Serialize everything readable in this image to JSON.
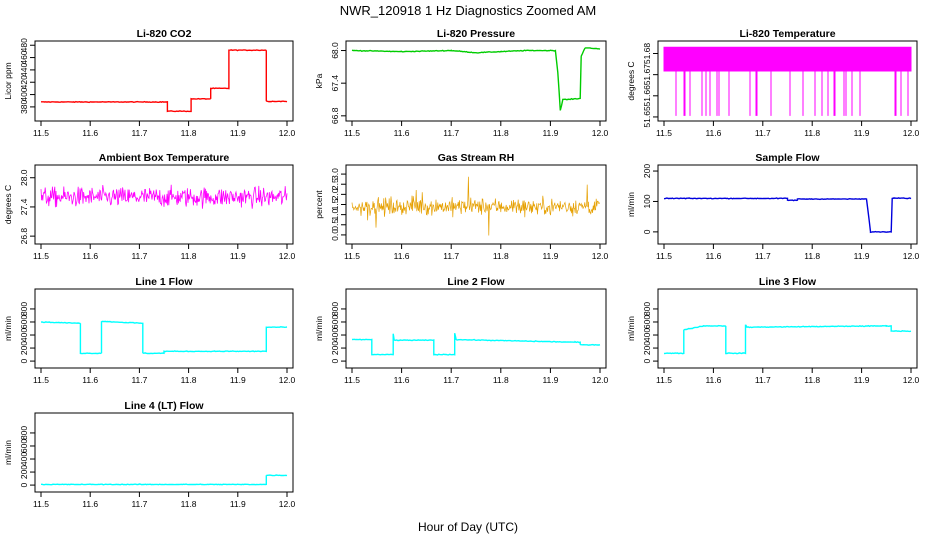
{
  "figure": {
    "title": "NWR_120918  1 Hz Diagnostics Zoomed AM",
    "xlabel": "Hour of Day (UTC)"
  },
  "chart_data": [
    {
      "type": "line",
      "title": "Li-820 CO2",
      "ylabel": "Licor ppm",
      "color": "#ff0000",
      "xlim": [
        11.5,
        12.0
      ],
      "ylim": [
        362,
        482
      ],
      "xticks": [
        "11.5",
        "11.6",
        "11.7",
        "11.8",
        "11.9",
        "12.0"
      ],
      "yticks": [
        "380",
        "400",
        "420",
        "440",
        "460",
        "480"
      ],
      "series": [
        {
          "x": [
            11.5,
            11.757,
            11.757,
            11.805,
            11.805,
            11.845,
            11.845,
            11.882,
            11.882,
            11.958,
            11.958,
            12.0
          ],
          "y": [
            388,
            388,
            373,
            373,
            393,
            393,
            410,
            410,
            472,
            472,
            389,
            389
          ]
        }
      ]
    },
    {
      "type": "line",
      "title": "Li-820 Pressure",
      "ylabel": "kPa",
      "color": "#00cc00",
      "xlim": [
        11.5,
        12.0
      ],
      "ylim": [
        66.76,
        68.12
      ],
      "xticks": [
        "11.5",
        "11.6",
        "11.7",
        "11.8",
        "11.9",
        "12.0"
      ],
      "yticks": [
        "66.8",
        "67.4",
        "68.0"
      ],
      "series": [
        {
          "x": [
            11.5,
            11.6,
            11.7,
            11.75,
            11.8,
            11.85,
            11.91,
            11.915,
            11.92,
            11.925,
            11.935,
            11.96,
            11.962,
            11.97,
            12.0
          ],
          "y": [
            68.0,
            67.98,
            68.0,
            67.96,
            67.98,
            68.0,
            68.0,
            67.6,
            66.9,
            67.1,
            67.1,
            67.12,
            67.9,
            68.05,
            68.03
          ]
        }
      ]
    },
    {
      "type": "line",
      "title": "Li-820 Temperature",
      "ylabel": "degrees C",
      "color": "#ff00ff",
      "xlim": [
        11.5,
        12.0
      ],
      "ylim": [
        51.6495,
        51.6845
      ],
      "xticks": [
        "11.5",
        "11.6",
        "11.7",
        "11.8",
        "11.9",
        "12.0"
      ],
      "yticks": [
        "51.65",
        "51.66",
        "51.67",
        "51.68"
      ]
    },
    {
      "type": "line",
      "title": "Ambient Box Temperature",
      "ylabel": "degrees C",
      "color": "#ff00ff",
      "xlim": [
        11.5,
        12.0
      ],
      "ylim": [
        26.7,
        28.2
      ],
      "xticks": [
        "11.5",
        "11.6",
        "11.7",
        "11.8",
        "11.9",
        "12.0"
      ],
      "yticks": [
        "26.8",
        "27.4",
        "28.0"
      ]
    },
    {
      "type": "line",
      "title": "Gas Stream RH",
      "ylabel": "percent",
      "color": "#e6a000",
      "xlim": [
        11.5,
        12.0
      ],
      "ylim": [
        -0.3,
        3.3
      ],
      "xticks": [
        "11.5",
        "11.6",
        "11.7",
        "11.8",
        "11.9",
        "12.0"
      ],
      "yticks": [
        "0.0",
        "0.5",
        "1.0",
        "1.5",
        "2.0",
        "2.5",
        "3.0"
      ]
    },
    {
      "type": "line",
      "title": "Sample Flow",
      "ylabel": "ml/min",
      "color": "#0000dd",
      "xlim": [
        11.5,
        12.0
      ],
      "ylim": [
        -30,
        210
      ],
      "xticks": [
        "11.5",
        "11.6",
        "11.7",
        "11.8",
        "11.9",
        "12.0"
      ],
      "yticks": [
        "0",
        "100",
        "200"
      ],
      "series": [
        {
          "x": [
            11.5,
            11.75,
            11.75,
            11.77,
            11.77,
            11.91,
            11.918,
            11.96,
            11.962,
            11.965,
            12.0
          ],
          "y": [
            110,
            110,
            104,
            104,
            108,
            108,
            0,
            0,
            110,
            112,
            110
          ]
        }
      ]
    },
    {
      "type": "line",
      "title": "Line 1 Flow",
      "ylabel": "ml/min",
      "color": "#00ffff",
      "xlim": [
        11.5,
        12.0
      ],
      "ylim": [
        -60,
        1060
      ],
      "xticks": [
        "11.5",
        "11.6",
        "11.7",
        "11.8",
        "11.9",
        "12.0"
      ],
      "yticks": [
        "0",
        "200",
        "400",
        "600",
        "800"
      ],
      "series": [
        {
          "x": [
            11.5,
            11.58,
            11.58,
            11.623,
            11.623,
            11.707,
            11.707,
            11.75,
            11.75,
            11.958,
            11.958,
            12.0
          ],
          "y": [
            600,
            580,
            120,
            120,
            610,
            580,
            120,
            120,
            150,
            150,
            520,
            520
          ]
        }
      ]
    },
    {
      "type": "line",
      "title": "Line 2 Flow",
      "ylabel": "ml/min",
      "color": "#00ffff",
      "xlim": [
        11.5,
        12.0
      ],
      "ylim": [
        -60,
        1060
      ],
      "xticks": [
        "11.5",
        "11.6",
        "11.7",
        "11.8",
        "11.9",
        "12.0"
      ],
      "yticks": [
        "0",
        "200",
        "400",
        "600",
        "800"
      ],
      "series": [
        {
          "x": [
            11.5,
            11.54,
            11.54,
            11.583,
            11.583,
            11.585,
            11.665,
            11.665,
            11.707,
            11.707,
            11.71,
            11.95,
            11.96,
            11.96,
            12.0
          ],
          "y": [
            330,
            330,
            100,
            100,
            420,
            320,
            320,
            100,
            100,
            430,
            330,
            290,
            290,
            250,
            250
          ]
        }
      ]
    },
    {
      "type": "line",
      "title": "Line 3 Flow",
      "ylabel": "ml/min",
      "color": "#00ffff",
      "xlim": [
        11.5,
        12.0
      ],
      "ylim": [
        -60,
        1060
      ],
      "xticks": [
        "11.5",
        "11.6",
        "11.7",
        "11.8",
        "11.9",
        "12.0"
      ],
      "yticks": [
        "0",
        "200",
        "400",
        "600",
        "800"
      ],
      "series": [
        {
          "x": [
            11.5,
            11.54,
            11.54,
            11.58,
            11.625,
            11.625,
            11.665,
            11.665,
            11.668,
            11.95,
            11.96,
            11.96,
            12.0
          ],
          "y": [
            120,
            120,
            480,
            540,
            540,
            120,
            120,
            560,
            520,
            540,
            540,
            460,
            460
          ]
        }
      ]
    },
    {
      "type": "line",
      "title": "Line 4 (LT) Flow",
      "ylabel": "ml/min",
      "color": "#00ffff",
      "xlim": [
        11.5,
        12.0
      ],
      "ylim": [
        -60,
        1060
      ],
      "xticks": [
        "11.5",
        "11.6",
        "11.7",
        "11.8",
        "11.9",
        "12.0"
      ],
      "yticks": [
        "0",
        "200",
        "400",
        "600",
        "800"
      ],
      "series": [
        {
          "x": [
            11.5,
            11.958,
            11.958,
            12.0
          ],
          "y": [
            10,
            10,
            150,
            150
          ]
        }
      ]
    }
  ]
}
